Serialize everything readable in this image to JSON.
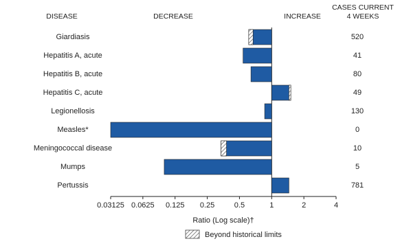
{
  "chart_data": {
    "type": "bar",
    "orientation": "horizontal",
    "log_scale": true,
    "log_base": 2,
    "headers": {
      "disease": "DISEASE",
      "decrease": "DECREASE",
      "increase": "INCREASE",
      "cases": [
        "CASES CURRENT",
        "4 WEEKS"
      ]
    },
    "categories": [
      "Giardiasis",
      "Hepatitis A, acute",
      "Hepatitis B, acute",
      "Hepatitis C, acute",
      "Legionellosis",
      "Measles*",
      "Meningococcal disease",
      "Mumps",
      "Pertussis"
    ],
    "values": [
      0.61,
      0.54,
      0.64,
      1.51,
      0.86,
      0.03125,
      0.336,
      0.099,
      1.45
    ],
    "historical_limits": [
      0.67,
      null,
      null,
      1.45,
      null,
      null,
      0.378,
      null,
      null
    ],
    "cases": [
      520,
      41,
      80,
      49,
      130,
      0,
      10,
      5,
      781
    ],
    "color": "#1f5ba3",
    "baseline": 1,
    "xlim": [
      0.03125,
      4
    ],
    "xticks": [
      0.03125,
      0.0625,
      0.125,
      0.25,
      0.5,
      1,
      2,
      4
    ],
    "xlabel": "Ratio (Log scale)†",
    "legend": "Beyond historical limits"
  }
}
